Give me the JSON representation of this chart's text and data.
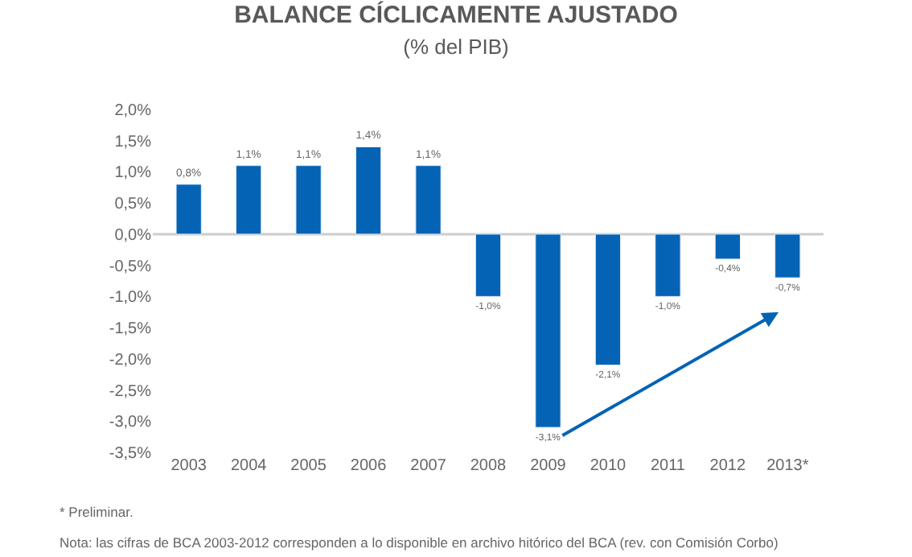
{
  "chart_data": {
    "type": "bar",
    "title": "BALANCE CÍCLICAMENTE AJUSTADO",
    "subtitle": "(% del PIB)",
    "categories": [
      "2003",
      "2004",
      "2005",
      "2006",
      "2007",
      "2008",
      "2009",
      "2010",
      "2011",
      "2012",
      "2013*"
    ],
    "values": [
      0.8,
      1.1,
      1.1,
      1.4,
      1.1,
      -1.0,
      -3.1,
      -2.1,
      -1.0,
      -0.4,
      -0.7
    ],
    "value_labels": [
      "0,8%",
      "1,1%",
      "1,1%",
      "1,4%",
      "1,1%",
      "-1,0%",
      "-3,1%",
      "-2,1%",
      "-1,0%",
      "-0,4%",
      "-0,7%"
    ],
    "color": "#0563b5",
    "ylim": [
      -3.5,
      2.0
    ],
    "ref_lines": [
      {
        "axis": "y",
        "value": 0,
        "color": "#cccccc"
      }
    ],
    "yticks": [
      {
        "value": 2.0,
        "label": "2,0%"
      },
      {
        "value": 1.5,
        "label": "1,5%"
      },
      {
        "value": 1.0,
        "label": "1,0%"
      },
      {
        "value": 0.5,
        "label": "0,5%"
      },
      {
        "value": 0.0,
        "label": "0,0%"
      },
      {
        "value": -0.5,
        "label": "-0,5%"
      },
      {
        "value": -1.0,
        "label": "-1,0%"
      },
      {
        "value": -1.5,
        "label": "-1,5%"
      },
      {
        "value": -2.0,
        "label": "-2,0%"
      },
      {
        "value": -2.5,
        "label": "-2,5%"
      },
      {
        "value": -3.0,
        "label": "-3,0%"
      },
      {
        "value": -3.5,
        "label": "-3,5%"
      }
    ],
    "grid": false,
    "annotations": [
      "* Preliminar.",
      "Nota: las cifras de BCA 2003-2012 corresponden a lo disponible en archivo hitórico del BCA (rev. con Comisión Corbo)"
    ]
  }
}
